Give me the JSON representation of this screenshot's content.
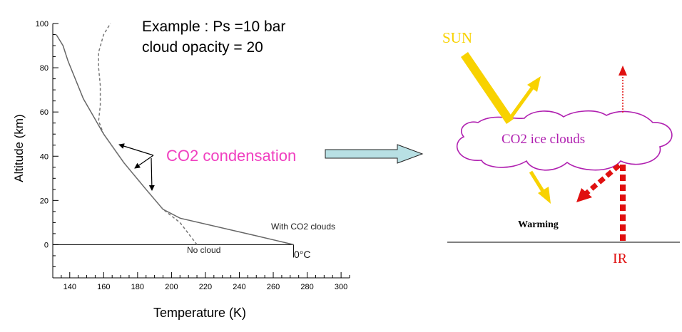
{
  "example_text": {
    "line1": "Example : Ps =10 bar",
    "line2": "cloud opacity = 20"
  },
  "condensation_label": "CO2 condensation",
  "chart_data": {
    "type": "line",
    "xlabel": "Temperature (K)",
    "ylabel": "Altitude (km)",
    "xlim": [
      130,
      305
    ],
    "ylim": [
      -15,
      100
    ],
    "xticks": [
      140,
      160,
      180,
      200,
      220,
      240,
      260,
      280,
      300
    ],
    "yticks": [
      0,
      20,
      40,
      60,
      80,
      100
    ],
    "tick_labels_x": [
      "140",
      "160",
      "180",
      "200",
      "220",
      "240",
      "260",
      "280",
      "300"
    ],
    "tick_labels_y": [
      "0",
      "20",
      "40",
      "60",
      "80",
      "100"
    ],
    "series": [
      {
        "name": "With CO2 clouds",
        "style": "solid",
        "points": [
          [
            272,
            0
          ],
          [
            250,
            4
          ],
          [
            205,
            12
          ],
          [
            195,
            16
          ],
          [
            185,
            25
          ],
          [
            172,
            37
          ],
          [
            160,
            50
          ],
          [
            148,
            66
          ],
          [
            139,
            83
          ],
          [
            136,
            90
          ],
          [
            132,
            95
          ]
        ]
      },
      {
        "name": "No cloud",
        "style": "dashed",
        "points": [
          [
            215,
            0
          ],
          [
            205,
            10
          ],
          [
            195,
            16
          ],
          [
            185,
            25
          ],
          [
            172,
            37
          ],
          [
            160,
            50
          ],
          [
            157,
            56
          ],
          [
            158,
            63
          ],
          [
            158,
            72
          ],
          [
            157,
            80
          ],
          [
            157,
            87
          ],
          [
            160,
            95
          ],
          [
            164,
            100
          ]
        ]
      }
    ],
    "annotations": {
      "with_clouds": "With CO2 clouds",
      "no_cloud": "No cloud",
      "zero_c": "0°C"
    }
  },
  "diagram": {
    "sun": "SUN",
    "clouds": "CO2 ice clouds",
    "warming": "Warming",
    "ir": "IR"
  },
  "colors": {
    "sun": "#f8d200",
    "cloud": "#b020b0",
    "ir": "#e01010",
    "condensation": "#f040c0",
    "arrow_fill": "#b8e0e4"
  }
}
